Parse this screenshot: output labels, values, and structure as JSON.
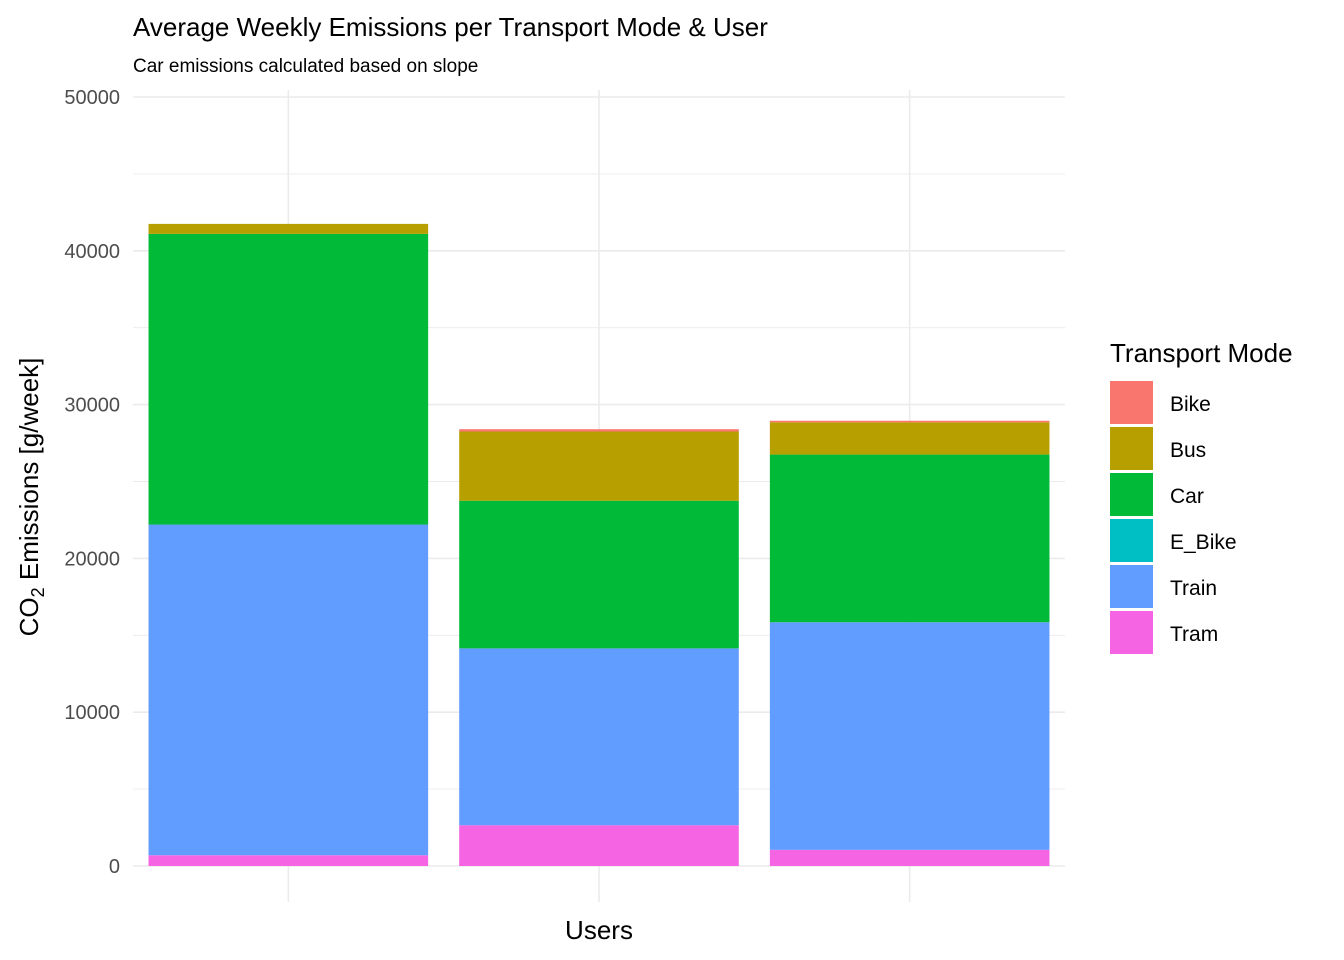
{
  "chart_data": {
    "type": "bar",
    "stacked": true,
    "title": "Average Weekly Emissions per Transport Mode & User",
    "subtitle": "Car emissions calculated based on slope",
    "xlabel": "Users",
    "ylabel": {
      "prefix": "CO",
      "subscript": "2",
      "suffix": " Emissions [g/week]"
    },
    "ylim": [
      0,
      50000
    ],
    "yticks": [
      0,
      10000,
      20000,
      30000,
      40000,
      50000
    ],
    "grid": true,
    "legend": {
      "title": "Transport Mode",
      "placement": "right"
    },
    "categories": [
      "",
      "",
      ""
    ],
    "series": [
      {
        "name": "Bike",
        "color": "#F8766D",
        "values": [
          0,
          150,
          100
        ]
      },
      {
        "name": "Bus",
        "color": "#B79F00",
        "values": [
          650,
          4500,
          2100
        ]
      },
      {
        "name": "Car",
        "color": "#00BA38",
        "values": [
          18900,
          9600,
          10900
        ]
      },
      {
        "name": "E_Bike",
        "color": "#00BFC4",
        "values": [
          0,
          0,
          0
        ]
      },
      {
        "name": "Train",
        "color": "#619CFF",
        "values": [
          21500,
          11500,
          14800
        ]
      },
      {
        "name": "Tram",
        "color": "#F564E3",
        "values": [
          700,
          2650,
          1050
        ]
      }
    ]
  }
}
